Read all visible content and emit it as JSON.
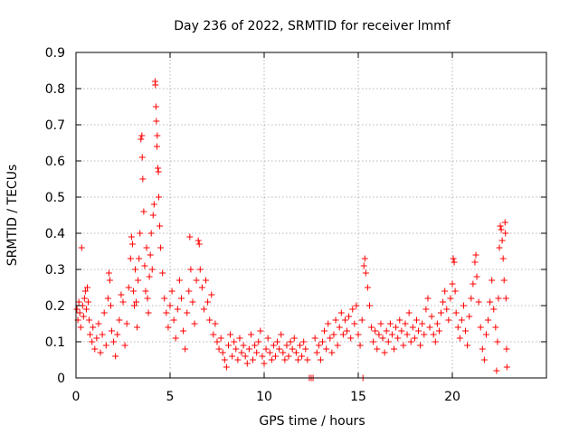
{
  "chart_data": {
    "type": "scatter",
    "title": "Day 236 of 2022, SRMTID for receiver lmmf",
    "xlabel": "GPS time / hours",
    "ylabel": "SRMTID / TECUs",
    "xlim": [
      0,
      25
    ],
    "ylim": [
      0,
      0.9
    ],
    "xticks": [
      0,
      5,
      10,
      15,
      20
    ],
    "yticks": [
      0,
      0.1,
      0.2,
      0.3,
      0.4,
      0.5,
      0.6,
      0.7,
      0.8,
      0.9
    ],
    "xtick_labels": [
      "0",
      "5",
      "10",
      "15",
      "20"
    ],
    "ytick_labels": [
      "0",
      "0.1",
      "0.2",
      "0.3",
      "0.4",
      "0.5",
      "0.6",
      "0.7",
      "0.8",
      "0.9"
    ],
    "grid": true,
    "marker": "+",
    "series": [
      {
        "name": "SRMTID",
        "color": "#ff0000",
        "points": [
          [
            0.05,
            0.19
          ],
          [
            0.1,
            0.16
          ],
          [
            0.15,
            0.21
          ],
          [
            0.2,
            0.18
          ],
          [
            0.25,
            0.14
          ],
          [
            0.3,
            0.36
          ],
          [
            0.35,
            0.2
          ],
          [
            0.4,
            0.17
          ],
          [
            0.45,
            0.22
          ],
          [
            0.5,
            0.24
          ],
          [
            0.55,
            0.19
          ],
          [
            0.6,
            0.25
          ],
          [
            0.65,
            0.21
          ],
          [
            0.7,
            0.16
          ],
          [
            0.75,
            0.12
          ],
          [
            0.85,
            0.1
          ],
          [
            0.9,
            0.14
          ],
          [
            1.0,
            0.08
          ],
          [
            1.1,
            0.11
          ],
          [
            1.2,
            0.15
          ],
          [
            1.3,
            0.07
          ],
          [
            1.4,
            0.12
          ],
          [
            1.5,
            0.18
          ],
          [
            1.6,
            0.09
          ],
          [
            1.7,
            0.22
          ],
          [
            1.75,
            0.29
          ],
          [
            1.8,
            0.27
          ],
          [
            1.85,
            0.2
          ],
          [
            1.9,
            0.13
          ],
          [
            2.0,
            0.1
          ],
          [
            2.1,
            0.06
          ],
          [
            2.2,
            0.12
          ],
          [
            2.3,
            0.16
          ],
          [
            2.4,
            0.23
          ],
          [
            2.5,
            0.21
          ],
          [
            2.6,
            0.09
          ],
          [
            2.7,
            0.15
          ],
          [
            2.8,
            0.25
          ],
          [
            2.9,
            0.33
          ],
          [
            2.95,
            0.39
          ],
          [
            3.0,
            0.37
          ],
          [
            3.05,
            0.24
          ],
          [
            3.1,
            0.2
          ],
          [
            3.15,
            0.3
          ],
          [
            3.2,
            0.21
          ],
          [
            3.25,
            0.14
          ],
          [
            3.3,
            0.27
          ],
          [
            3.35,
            0.33
          ],
          [
            3.4,
            0.4
          ],
          [
            3.45,
            0.66
          ],
          [
            3.5,
            0.67
          ],
          [
            3.52,
            0.61
          ],
          [
            3.55,
            0.55
          ],
          [
            3.6,
            0.46
          ],
          [
            3.65,
            0.31
          ],
          [
            3.7,
            0.24
          ],
          [
            3.75,
            0.36
          ],
          [
            3.8,
            0.22
          ],
          [
            3.85,
            0.18
          ],
          [
            3.9,
            0.28
          ],
          [
            3.95,
            0.34
          ],
          [
            4.0,
            0.4
          ],
          [
            4.05,
            0.3
          ],
          [
            4.1,
            0.45
          ],
          [
            4.15,
            0.48
          ],
          [
            4.2,
            0.82
          ],
          [
            4.22,
            0.81
          ],
          [
            4.25,
            0.75
          ],
          [
            4.27,
            0.71
          ],
          [
            4.3,
            0.64
          ],
          [
            4.32,
            0.67
          ],
          [
            4.35,
            0.58
          ],
          [
            4.38,
            0.57
          ],
          [
            4.4,
            0.5
          ],
          [
            4.45,
            0.42
          ],
          [
            4.5,
            0.36
          ],
          [
            4.6,
            0.29
          ],
          [
            4.7,
            0.22
          ],
          [
            4.8,
            0.18
          ],
          [
            4.9,
            0.14
          ],
          [
            5.0,
            0.2
          ],
          [
            5.1,
            0.24
          ],
          [
            5.2,
            0.16
          ],
          [
            5.3,
            0.11
          ],
          [
            5.4,
            0.19
          ],
          [
            5.5,
            0.27
          ],
          [
            5.6,
            0.22
          ],
          [
            5.7,
            0.13
          ],
          [
            5.8,
            0.08
          ],
          [
            5.9,
            0.18
          ],
          [
            6.0,
            0.24
          ],
          [
            6.05,
            0.39
          ],
          [
            6.1,
            0.3
          ],
          [
            6.2,
            0.21
          ],
          [
            6.3,
            0.15
          ],
          [
            6.4,
            0.27
          ],
          [
            6.5,
            0.38
          ],
          [
            6.55,
            0.37
          ],
          [
            6.6,
            0.3
          ],
          [
            6.7,
            0.25
          ],
          [
            6.8,
            0.19
          ],
          [
            6.9,
            0.27
          ],
          [
            7.0,
            0.21
          ],
          [
            7.1,
            0.16
          ],
          [
            7.2,
            0.23
          ],
          [
            7.3,
            0.12
          ],
          [
            7.4,
            0.15
          ],
          [
            7.5,
            0.1
          ],
          [
            7.6,
            0.08
          ],
          [
            7.7,
            0.11
          ],
          [
            7.8,
            0.07
          ],
          [
            7.9,
            0.05
          ],
          [
            8.0,
            0.03
          ],
          [
            8.1,
            0.09
          ],
          [
            8.2,
            0.12
          ],
          [
            8.3,
            0.06
          ],
          [
            8.4,
            0.1
          ],
          [
            8.5,
            0.08
          ],
          [
            8.6,
            0.05
          ],
          [
            8.7,
            0.11
          ],
          [
            8.8,
            0.07
          ],
          [
            8.9,
            0.09
          ],
          [
            9.0,
            0.06
          ],
          [
            9.1,
            0.04
          ],
          [
            9.2,
            0.08
          ],
          [
            9.3,
            0.12
          ],
          [
            9.4,
            0.05
          ],
          [
            9.5,
            0.09
          ],
          [
            9.6,
            0.07
          ],
          [
            9.7,
            0.1
          ],
          [
            9.8,
            0.13
          ],
          [
            9.9,
            0.06
          ],
          [
            10.0,
            0.04
          ],
          [
            10.1,
            0.08
          ],
          [
            10.2,
            0.11
          ],
          [
            10.3,
            0.07
          ],
          [
            10.4,
            0.05
          ],
          [
            10.5,
            0.09
          ],
          [
            10.6,
            0.06
          ],
          [
            10.7,
            0.1
          ],
          [
            10.8,
            0.08
          ],
          [
            10.9,
            0.12
          ],
          [
            11.0,
            0.07
          ],
          [
            11.1,
            0.05
          ],
          [
            11.2,
            0.09
          ],
          [
            11.3,
            0.06
          ],
          [
            11.4,
            0.1
          ],
          [
            11.5,
            0.08
          ],
          [
            11.6,
            0.11
          ],
          [
            11.7,
            0.07
          ],
          [
            11.8,
            0.05
          ],
          [
            11.9,
            0.09
          ],
          [
            12.0,
            0.06
          ],
          [
            12.1,
            0.1
          ],
          [
            12.2,
            0.08
          ],
          [
            12.3,
            0.05
          ],
          [
            12.4,
            0.0
          ],
          [
            12.5,
            0.0
          ],
          [
            12.6,
            0.0
          ],
          [
            12.7,
            0.11
          ],
          [
            12.8,
            0.07
          ],
          [
            12.9,
            0.09
          ],
          [
            13.0,
            0.05
          ],
          [
            13.1,
            0.1
          ],
          [
            13.2,
            0.13
          ],
          [
            13.3,
            0.08
          ],
          [
            13.4,
            0.15
          ],
          [
            13.5,
            0.11
          ],
          [
            13.6,
            0.07
          ],
          [
            13.7,
            0.12
          ],
          [
            13.8,
            0.16
          ],
          [
            13.9,
            0.09
          ],
          [
            14.0,
            0.14
          ],
          [
            14.1,
            0.18
          ],
          [
            14.2,
            0.12
          ],
          [
            14.3,
            0.16
          ],
          [
            14.4,
            0.13
          ],
          [
            14.5,
            0.17
          ],
          [
            14.6,
            0.11
          ],
          [
            14.7,
            0.19
          ],
          [
            14.8,
            0.15
          ],
          [
            14.9,
            0.2
          ],
          [
            15.0,
            0.12
          ],
          [
            15.1,
            0.09
          ],
          [
            15.2,
            0.16
          ],
          [
            15.25,
            0.0
          ],
          [
            15.3,
            0.31
          ],
          [
            15.35,
            0.33
          ],
          [
            15.4,
            0.29
          ],
          [
            15.5,
            0.25
          ],
          [
            15.6,
            0.2
          ],
          [
            15.7,
            0.14
          ],
          [
            15.8,
            0.1
          ],
          [
            15.9,
            0.13
          ],
          [
            16.0,
            0.08
          ],
          [
            16.1,
            0.12
          ],
          [
            16.2,
            0.15
          ],
          [
            16.3,
            0.11
          ],
          [
            16.4,
            0.07
          ],
          [
            16.5,
            0.13
          ],
          [
            16.6,
            0.1
          ],
          [
            16.7,
            0.15
          ],
          [
            16.8,
            0.12
          ],
          [
            16.9,
            0.08
          ],
          [
            17.0,
            0.14
          ],
          [
            17.1,
            0.11
          ],
          [
            17.2,
            0.16
          ],
          [
            17.3,
            0.13
          ],
          [
            17.4,
            0.09
          ],
          [
            17.5,
            0.15
          ],
          [
            17.6,
            0.12
          ],
          [
            17.7,
            0.18
          ],
          [
            17.8,
            0.1
          ],
          [
            17.9,
            0.14
          ],
          [
            18.0,
            0.11
          ],
          [
            18.1,
            0.16
          ],
          [
            18.2,
            0.13
          ],
          [
            18.3,
            0.09
          ],
          [
            18.4,
            0.15
          ],
          [
            18.5,
            0.12
          ],
          [
            18.6,
            0.19
          ],
          [
            18.7,
            0.22
          ],
          [
            18.8,
            0.14
          ],
          [
            18.9,
            0.17
          ],
          [
            19.0,
            0.12
          ],
          [
            19.1,
            0.1
          ],
          [
            19.2,
            0.15
          ],
          [
            19.3,
            0.13
          ],
          [
            19.4,
            0.18
          ],
          [
            19.5,
            0.21
          ],
          [
            19.6,
            0.24
          ],
          [
            19.7,
            0.19
          ],
          [
            19.8,
            0.16
          ],
          [
            19.9,
            0.22
          ],
          [
            20.0,
            0.26
          ],
          [
            20.05,
            0.33
          ],
          [
            20.1,
            0.32
          ],
          [
            20.15,
            0.24
          ],
          [
            20.2,
            0.18
          ],
          [
            20.3,
            0.14
          ],
          [
            20.4,
            0.11
          ],
          [
            20.5,
            0.16
          ],
          [
            20.6,
            0.2
          ],
          [
            20.7,
            0.13
          ],
          [
            20.8,
            0.09
          ],
          [
            20.9,
            0.17
          ],
          [
            21.0,
            0.22
          ],
          [
            21.1,
            0.26
          ],
          [
            21.2,
            0.32
          ],
          [
            21.25,
            0.34
          ],
          [
            21.3,
            0.28
          ],
          [
            21.4,
            0.21
          ],
          [
            21.5,
            0.14
          ],
          [
            21.6,
            0.08
          ],
          [
            21.7,
            0.05
          ],
          [
            21.8,
            0.12
          ],
          [
            21.9,
            0.16
          ],
          [
            22.0,
            0.21
          ],
          [
            22.1,
            0.27
          ],
          [
            22.2,
            0.19
          ],
          [
            22.3,
            0.14
          ],
          [
            22.35,
            0.02
          ],
          [
            22.4,
            0.1
          ],
          [
            22.45,
            0.22
          ],
          [
            22.5,
            0.36
          ],
          [
            22.55,
            0.42
          ],
          [
            22.6,
            0.41
          ],
          [
            22.65,
            0.38
          ],
          [
            22.7,
            0.33
          ],
          [
            22.75,
            0.27
          ],
          [
            22.8,
            0.43
          ],
          [
            22.82,
            0.4
          ],
          [
            22.85,
            0.22
          ],
          [
            22.88,
            0.08
          ],
          [
            22.9,
            0.03
          ]
        ]
      }
    ]
  }
}
